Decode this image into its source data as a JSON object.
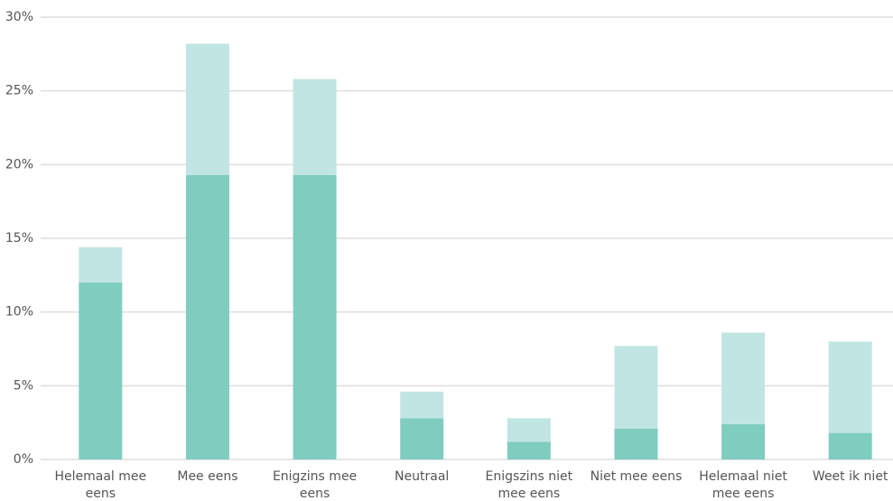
{
  "chart_data": {
    "type": "stacked-bar",
    "categories": [
      "Helemaal mee eens",
      "Mee eens",
      "Enigzins mee eens",
      "Neutraal",
      "Enigszins niet mee eens",
      "Niet mee eens",
      "Helemaal niet mee eens",
      "Weet ik niet"
    ],
    "series": [
      {
        "color": "#7fcdbf",
        "values": [
          12,
          19.3,
          19.3,
          2.8,
          1.2,
          2.1,
          2.4,
          1.8
        ]
      },
      {
        "color": "#c1e5e2",
        "values": [
          2.4,
          8.9,
          6.5,
          1.8,
          1.6,
          5.6,
          6.2,
          6.2
        ]
      }
    ],
    "ylim": [
      0,
      30
    ],
    "yticks": [
      {
        "value": 0,
        "label": "0%"
      },
      {
        "value": 5,
        "label": "5%"
      },
      {
        "value": 10,
        "label": "10%"
      },
      {
        "value": 15,
        "label": "15%"
      },
      {
        "value": 20,
        "label": "20%"
      },
      {
        "value": 25,
        "label": "25%"
      },
      {
        "value": 30,
        "label": "30%"
      }
    ],
    "grid": true
  }
}
